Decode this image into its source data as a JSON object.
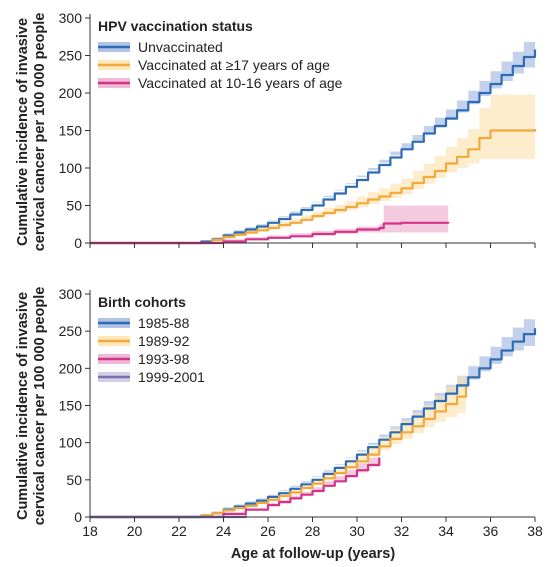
{
  "figure": {
    "xlabel": "Age at follow-up (years)",
    "ylabel_line1": "Cumulative incidence of invasive",
    "ylabel_line2": "cervical cancer per 100 000 people"
  },
  "chart_data": [
    {
      "type": "line",
      "title": "HPV vaccination status",
      "xlim": [
        18,
        38
      ],
      "ylim": [
        0,
        300
      ],
      "yticks": [
        0,
        50,
        100,
        150,
        200,
        250,
        300
      ],
      "xticks": [
        18,
        20,
        22,
        24,
        26,
        28,
        30,
        32,
        34,
        36,
        38
      ],
      "xtick_labels_shown": false,
      "grid": false,
      "legend_position": "top-left",
      "series": [
        {
          "name": "Unvaccinated",
          "color": "#2e6db4",
          "band_color": "#9fb5e0",
          "x": [
            18,
            22,
            23,
            23.5,
            24,
            24.5,
            25,
            25.5,
            26,
            26.5,
            27,
            27.5,
            28,
            28.5,
            29,
            29.5,
            30,
            30.5,
            31,
            31.5,
            32,
            32.5,
            33,
            33.5,
            34,
            34.5,
            35,
            35.5,
            36,
            36.5,
            37,
            37.5,
            38
          ],
          "y": [
            0,
            0,
            2,
            5,
            10,
            14,
            18,
            22,
            27,
            32,
            38,
            44,
            50,
            58,
            66,
            75,
            84,
            94,
            104,
            114,
            125,
            135,
            146,
            156,
            166,
            177,
            188,
            200,
            212,
            224,
            236,
            248,
            258
          ],
          "lower": [
            0,
            0,
            1,
            3,
            8,
            11,
            15,
            19,
            24,
            29,
            35,
            40,
            46,
            54,
            61,
            70,
            79,
            88,
            97,
            107,
            117,
            126,
            136,
            145,
            154,
            164,
            174,
            185,
            196,
            206,
            216,
            226,
            234
          ],
          "upper": [
            0,
            0,
            3,
            7,
            13,
            17,
            21,
            25,
            30,
            36,
            42,
            48,
            55,
            63,
            71,
            80,
            90,
            100,
            111,
            122,
            133,
            144,
            156,
            167,
            178,
            190,
            203,
            216,
            229,
            242,
            255,
            268,
            280
          ]
        },
        {
          "name": "Vaccinated at ≥17 years of age",
          "color": "#f2a93b",
          "band_color": "#fde2ae",
          "x": [
            18,
            22.8,
            23.5,
            24,
            24.5,
            25,
            25.5,
            26,
            26.5,
            27,
            27.5,
            28,
            28.5,
            29,
            29.5,
            30,
            30.5,
            31,
            31.5,
            32,
            32.5,
            33,
            33.5,
            34,
            34.5,
            35,
            35.5,
            36,
            38
          ],
          "y": [
            0,
            0,
            4,
            8,
            11,
            14,
            17,
            20,
            24,
            27,
            31,
            36,
            40,
            44,
            48,
            53,
            58,
            62,
            67,
            73,
            80,
            88,
            96,
            106,
            115,
            125,
            140,
            150,
            152
          ],
          "lower": [
            0,
            0,
            1,
            4,
            7,
            9,
            12,
            15,
            18,
            21,
            25,
            29,
            33,
            37,
            40,
            44,
            48,
            52,
            56,
            60,
            65,
            72,
            79,
            87,
            94,
            100,
            106,
            112,
            112
          ],
          "upper": [
            0,
            0,
            8,
            12,
            15,
            18,
            22,
            25,
            29,
            32,
            37,
            42,
            47,
            51,
            56,
            62,
            68,
            73,
            79,
            86,
            96,
            106,
            116,
            128,
            140,
            152,
            180,
            198,
            200
          ]
        },
        {
          "name": "Vaccinated at 10-16 years of age",
          "color": "#d4338a",
          "band_color": "#eba9cc",
          "x": [
            18,
            23.5,
            24,
            25,
            26,
            27,
            28,
            29,
            30,
            31,
            31.2,
            32,
            33,
            34.1
          ],
          "y": [
            0,
            0,
            2,
            5,
            7,
            9,
            12,
            15,
            18,
            20,
            26,
            27,
            27,
            28
          ],
          "lower": [
            0,
            0,
            1,
            3,
            5,
            6,
            8,
            10,
            12,
            14,
            14,
            14,
            14,
            14
          ],
          "upper": [
            0,
            0,
            5,
            8,
            10,
            13,
            16,
            19,
            22,
            25,
            50,
            50,
            50,
            50
          ]
        }
      ]
    },
    {
      "type": "line",
      "title": "Birth cohorts",
      "xlim": [
        18,
        38
      ],
      "ylim": [
        0,
        300
      ],
      "yticks": [
        0,
        50,
        100,
        150,
        200,
        250,
        300
      ],
      "xticks": [
        18,
        20,
        22,
        24,
        26,
        28,
        30,
        32,
        34,
        36,
        38
      ],
      "xtick_labels_shown": true,
      "grid": false,
      "legend_position": "top-left",
      "series": [
        {
          "name": "1985-88",
          "color": "#2e6db4",
          "band_color": "#9fb5e0",
          "x": [
            18,
            22,
            23,
            23.5,
            24,
            24.5,
            25,
            25.5,
            26,
            26.5,
            27,
            27.5,
            28,
            28.5,
            29,
            29.5,
            30,
            30.5,
            31,
            31.5,
            32,
            32.5,
            33,
            33.5,
            34,
            34.5,
            35,
            35.5,
            36,
            36.5,
            37,
            37.5,
            38
          ],
          "y": [
            0,
            0,
            2,
            5,
            10,
            14,
            18,
            22,
            27,
            32,
            38,
            44,
            50,
            58,
            66,
            75,
            84,
            94,
            104,
            114,
            125,
            135,
            146,
            156,
            166,
            177,
            188,
            200,
            212,
            224,
            236,
            246,
            254
          ],
          "lower": [
            0,
            0,
            1,
            3,
            8,
            11,
            15,
            19,
            24,
            29,
            35,
            40,
            46,
            54,
            61,
            70,
            79,
            88,
            97,
            107,
            117,
            126,
            136,
            145,
            154,
            164,
            174,
            185,
            196,
            206,
            216,
            224,
            230
          ],
          "upper": [
            0,
            0,
            3,
            7,
            13,
            17,
            21,
            25,
            30,
            36,
            42,
            48,
            55,
            63,
            71,
            80,
            90,
            100,
            111,
            122,
            133,
            144,
            156,
            167,
            178,
            190,
            203,
            216,
            229,
            242,
            255,
            266,
            278
          ]
        },
        {
          "name": "1989-92",
          "color": "#f2a93b",
          "band_color": "#fde2ae",
          "x": [
            18,
            22.5,
            23,
            23.5,
            24,
            24.5,
            25,
            25.5,
            26,
            26.5,
            27,
            27.5,
            28,
            28.5,
            29,
            29.5,
            30,
            30.5,
            31,
            31.5,
            32,
            32.5,
            33,
            33.5,
            34,
            34.5,
            34.9
          ],
          "y": [
            0,
            0,
            2,
            5,
            9,
            12,
            15,
            19,
            23,
            28,
            33,
            39,
            45,
            52,
            59,
            67,
            75,
            84,
            95,
            105,
            114,
            122,
            132,
            142,
            152,
            162,
            175
          ],
          "lower": [
            0,
            0,
            1,
            3,
            6,
            9,
            12,
            16,
            19,
            23,
            28,
            33,
            38,
            44,
            50,
            57,
            64,
            72,
            81,
            90,
            98,
            105,
            113,
            121,
            128,
            134,
            140
          ],
          "upper": [
            0,
            0,
            4,
            8,
            12,
            15,
            18,
            22,
            27,
            33,
            38,
            45,
            52,
            60,
            68,
            77,
            86,
            96,
            108,
            120,
            130,
            140,
            151,
            163,
            176,
            190,
            225
          ]
        },
        {
          "name": "1993-98",
          "color": "#d4338a",
          "band_color": "#eba9cc",
          "x": [
            18,
            23,
            24,
            25,
            26,
            26.5,
            27,
            27.5,
            28,
            28.5,
            29,
            29.5,
            30,
            30.5,
            31
          ],
          "y": [
            0,
            0,
            4,
            10,
            16,
            20,
            25,
            30,
            35,
            42,
            48,
            55,
            63,
            70,
            80
          ],
          "lower": [
            0,
            0,
            2,
            7,
            13,
            17,
            21,
            25,
            30,
            36,
            41,
            47,
            54,
            60,
            68
          ],
          "upper": [
            0,
            0,
            6,
            13,
            19,
            23,
            29,
            34,
            40,
            48,
            55,
            63,
            72,
            80,
            95
          ]
        },
        {
          "name": "1999-2001",
          "color": "#7a6fb0",
          "band_color": "#c7c2dd",
          "x": [
            18,
            24,
            25
          ],
          "y": [
            0,
            0,
            2
          ],
          "lower": [
            0,
            0,
            0
          ],
          "upper": [
            0,
            0,
            4
          ]
        }
      ]
    }
  ]
}
